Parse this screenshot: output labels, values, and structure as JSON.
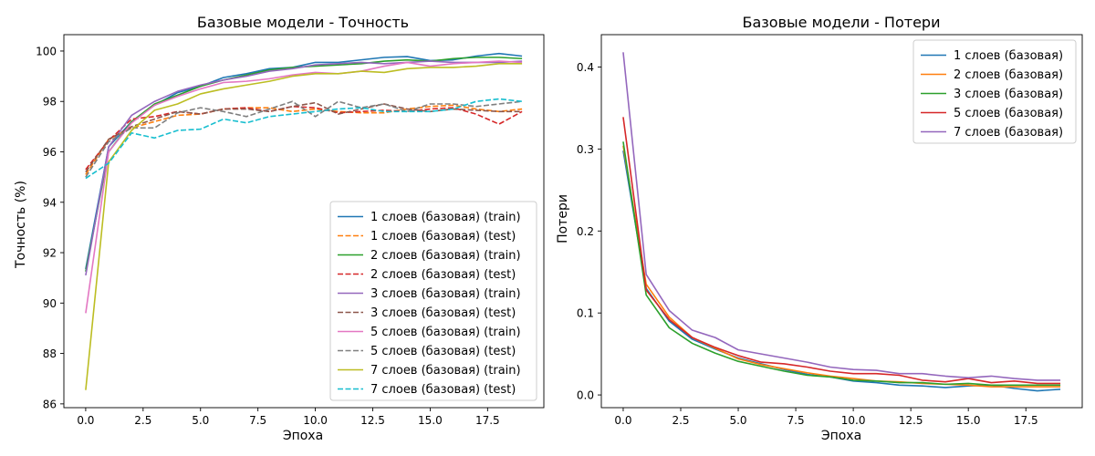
{
  "chart_data": [
    {
      "type": "line",
      "title": "Базовые модели - Точность",
      "xlabel": "Эпоха",
      "ylabel": "Точность (%)",
      "xlim": [
        -0.95,
        19.95
      ],
      "ylim": [
        85.85,
        100.65
      ],
      "xticks": [
        0.0,
        2.5,
        5.0,
        7.5,
        10.0,
        12.5,
        15.0,
        17.5
      ],
      "xtick_labels": [
        "0.0",
        "2.5",
        "5.0",
        "7.5",
        "10.0",
        "12.5",
        "15.0",
        "17.5"
      ],
      "yticks": [
        86,
        88,
        90,
        92,
        94,
        96,
        98,
        100
      ],
      "ytick_labels": [
        "86",
        "88",
        "90",
        "92",
        "94",
        "96",
        "98",
        "100"
      ],
      "grid": false,
      "legend_position": "lower-right",
      "x": [
        0,
        1,
        2,
        3,
        4,
        5,
        6,
        7,
        8,
        9,
        10,
        11,
        12,
        13,
        14,
        15,
        16,
        17,
        18,
        19
      ],
      "series": [
        {
          "name": "1 слоев (базовая) (train)",
          "color": "#1f77b4",
          "style": "solid",
          "values": [
            91.35,
            96.2,
            97.2,
            97.85,
            98.35,
            98.6,
            98.95,
            99.1,
            99.3,
            99.35,
            99.55,
            99.55,
            99.65,
            99.75,
            99.78,
            99.62,
            99.65,
            99.8,
            99.9,
            99.8
          ]
        },
        {
          "name": "1 слоев (базовая) (test)",
          "color": "#ff7f0e",
          "style": "dashed",
          "values": [
            95.1,
            96.5,
            96.95,
            97.2,
            97.45,
            97.5,
            97.7,
            97.75,
            97.75,
            97.6,
            97.7,
            97.6,
            97.55,
            97.55,
            97.7,
            97.8,
            97.85,
            97.7,
            97.6,
            97.7
          ]
        },
        {
          "name": "2 слоев (базовая) (train)",
          "color": "#2ca02c",
          "style": "solid",
          "values": [
            91.25,
            96.0,
            97.2,
            97.9,
            98.25,
            98.6,
            98.85,
            99.05,
            99.25,
            99.35,
            99.4,
            99.45,
            99.5,
            99.6,
            99.65,
            99.6,
            99.7,
            99.75,
            99.75,
            99.7
          ]
        },
        {
          "name": "2 слоев (базовая) (test)",
          "color": "#d62728",
          "style": "dashed",
          "values": [
            95.3,
            96.45,
            97.3,
            97.4,
            97.6,
            97.5,
            97.7,
            97.75,
            97.6,
            97.8,
            97.75,
            97.55,
            97.6,
            97.65,
            97.6,
            97.7,
            97.75,
            97.5,
            97.1,
            97.6
          ]
        },
        {
          "name": "3 слоев (базовая) (train)",
          "color": "#9467bd",
          "style": "solid",
          "values": [
            91.1,
            96.2,
            97.45,
            98.0,
            98.4,
            98.65,
            98.85,
            99.0,
            99.2,
            99.3,
            99.45,
            99.5,
            99.55,
            99.5,
            99.55,
            99.6,
            99.55,
            99.55,
            99.55,
            99.6
          ]
        },
        {
          "name": "3 слоев (базовая) (test)",
          "color": "#8c564b",
          "style": "dashed",
          "values": [
            95.2,
            96.5,
            97.0,
            97.3,
            97.6,
            97.5,
            97.7,
            97.7,
            97.6,
            97.8,
            97.95,
            97.5,
            97.7,
            97.9,
            97.7,
            97.6,
            97.7,
            97.65,
            97.6,
            97.6
          ]
        },
        {
          "name": "5 слоев (базовая) (train)",
          "color": "#e377c2",
          "style": "solid",
          "values": [
            89.6,
            96.0,
            97.15,
            97.85,
            98.2,
            98.5,
            98.75,
            98.8,
            98.9,
            99.05,
            99.15,
            99.1,
            99.2,
            99.4,
            99.55,
            99.4,
            99.5,
            99.55,
            99.6,
            99.55
          ]
        },
        {
          "name": "5 слоев (базовая) (test)",
          "color": "#7f7f7f",
          "style": "dashed",
          "values": [
            95.0,
            96.4,
            96.95,
            96.95,
            97.55,
            97.75,
            97.6,
            97.4,
            97.7,
            98.0,
            97.4,
            98.0,
            97.75,
            97.9,
            97.6,
            97.9,
            97.9,
            97.8,
            97.9,
            98.0
          ]
        },
        {
          "name": "7 слоев (базовая) (train)",
          "color": "#bcbd22",
          "style": "solid",
          "values": [
            86.55,
            95.6,
            96.85,
            97.65,
            97.9,
            98.3,
            98.5,
            98.65,
            98.8,
            99.0,
            99.1,
            99.1,
            99.2,
            99.15,
            99.3,
            99.35,
            99.35,
            99.4,
            99.5,
            99.5
          ]
        },
        {
          "name": "7 слоев (базовая) (test)",
          "color": "#17becf",
          "style": "dashed",
          "values": [
            94.95,
            95.55,
            96.75,
            96.55,
            96.85,
            96.9,
            97.3,
            97.15,
            97.4,
            97.5,
            97.6,
            97.7,
            97.75,
            97.6,
            97.6,
            97.6,
            97.7,
            98.0,
            98.1,
            98.0
          ]
        }
      ]
    },
    {
      "type": "line",
      "title": "Базовые модели - Потери",
      "xlabel": "Эпоха",
      "ylabel": "Потери",
      "xlim": [
        -0.95,
        19.95
      ],
      "ylim": [
        -0.0155,
        0.4395
      ],
      "xticks": [
        0.0,
        2.5,
        5.0,
        7.5,
        10.0,
        12.5,
        15.0,
        17.5
      ],
      "xtick_labels": [
        "0.0",
        "2.5",
        "5.0",
        "7.5",
        "10.0",
        "12.5",
        "15.0",
        "17.5"
      ],
      "yticks": [
        0.0,
        0.1,
        0.2,
        0.3,
        0.4
      ],
      "ytick_labels": [
        "0.0",
        "0.1",
        "0.2",
        "0.3",
        "0.4"
      ],
      "grid": false,
      "legend_position": "upper-right",
      "x": [
        0,
        1,
        2,
        3,
        4,
        5,
        6,
        7,
        8,
        9,
        10,
        11,
        12,
        13,
        14,
        15,
        16,
        17,
        18,
        19
      ],
      "series": [
        {
          "name": "1 слоев (базовая)",
          "color": "#1f77b4",
          "style": "solid",
          "values": [
            0.298,
            0.13,
            0.09,
            0.068,
            0.056,
            0.045,
            0.038,
            0.031,
            0.025,
            0.022,
            0.017,
            0.015,
            0.012,
            0.011,
            0.009,
            0.011,
            0.012,
            0.008,
            0.005,
            0.007
          ]
        },
        {
          "name": "2 слоев (базовая)",
          "color": "#ff7f0e",
          "style": "solid",
          "values": [
            0.304,
            0.135,
            0.095,
            0.07,
            0.057,
            0.044,
            0.037,
            0.032,
            0.027,
            0.023,
            0.02,
            0.017,
            0.016,
            0.014,
            0.013,
            0.012,
            0.01,
            0.01,
            0.01,
            0.01
          ]
        },
        {
          "name": "3 слоев (базовая)",
          "color": "#2ca02c",
          "style": "solid",
          "values": [
            0.309,
            0.122,
            0.082,
            0.063,
            0.051,
            0.041,
            0.035,
            0.029,
            0.024,
            0.022,
            0.018,
            0.017,
            0.015,
            0.015,
            0.013,
            0.014,
            0.012,
            0.012,
            0.012,
            0.012
          ]
        },
        {
          "name": "5 слоев (базовая)",
          "color": "#d62728",
          "style": "solid",
          "values": [
            0.339,
            0.128,
            0.092,
            0.07,
            0.058,
            0.048,
            0.04,
            0.038,
            0.034,
            0.029,
            0.026,
            0.026,
            0.024,
            0.018,
            0.016,
            0.02,
            0.015,
            0.017,
            0.014,
            0.014
          ]
        },
        {
          "name": "7 слоев (базовая)",
          "color": "#9467bd",
          "style": "solid",
          "values": [
            0.418,
            0.147,
            0.103,
            0.079,
            0.07,
            0.055,
            0.05,
            0.045,
            0.04,
            0.034,
            0.031,
            0.03,
            0.026,
            0.026,
            0.023,
            0.021,
            0.023,
            0.02,
            0.018,
            0.018
          ]
        }
      ]
    }
  ]
}
